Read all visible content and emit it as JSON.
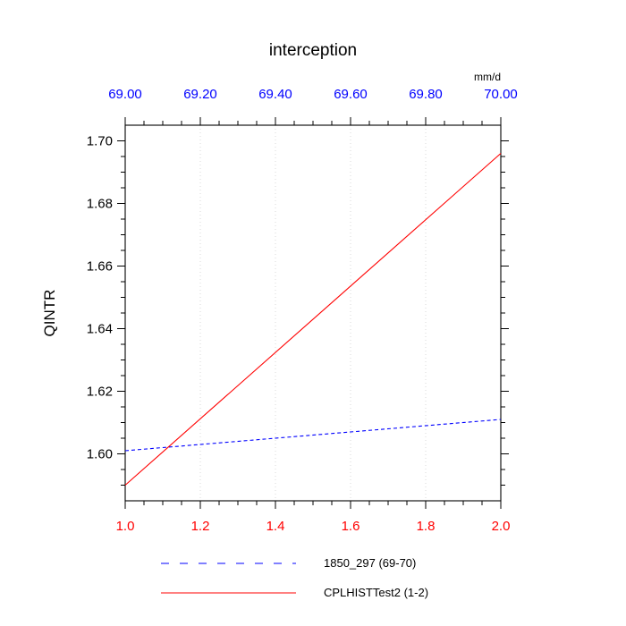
{
  "colors": {
    "background": "#ffffff",
    "frame": "#000000",
    "grid": "#d9d9d9",
    "axis_text": "#000000",
    "legend_text": "#000000"
  },
  "chart_data": {
    "type": "line",
    "title": "interception",
    "ylabel": "QINTR",
    "ylim": [
      1.585,
      1.705
    ],
    "grid": "vertical-dotted",
    "legend_position": "bottom",
    "left_axis": {
      "ticks": [
        1.6,
        1.62,
        1.64,
        1.66,
        1.68,
        1.7
      ],
      "tick_labels": [
        "1.60",
        "1.62",
        "1.64",
        "1.66",
        "1.68",
        "1.70"
      ],
      "minor_step": 0.005
    },
    "bottom_axis": {
      "lim": [
        1.0,
        2.0
      ],
      "ticks": [
        1.0,
        1.2,
        1.4,
        1.6,
        1.8,
        2.0
      ],
      "tick_labels": [
        "1.0",
        "1.2",
        "1.4",
        "1.6",
        "1.8",
        "2.0"
      ],
      "minor_step": 0.05,
      "color": "#ff0000"
    },
    "top_axis": {
      "lim": [
        69.0,
        70.0
      ],
      "ticks": [
        69.0,
        69.2,
        69.4,
        69.6,
        69.8,
        70.0
      ],
      "tick_labels": [
        "69.00",
        "69.20",
        "69.40",
        "69.60",
        "69.80",
        "70.00"
      ],
      "minor_step": 0.05,
      "unit": "mm/d",
      "color": "#0000ff"
    },
    "grid_x": [
      1.2,
      1.4,
      1.6,
      1.8
    ],
    "series": [
      {
        "name": "1850_297 (69-70)",
        "axis": "top",
        "color": "#0000ff",
        "style": "dashed",
        "x": [
          69.0,
          70.0
        ],
        "y": [
          1.601,
          1.611
        ]
      },
      {
        "name": "CPLHISTTest2 (1-2)",
        "axis": "bottom",
        "color": "#ff0000",
        "style": "solid",
        "x": [
          1.0,
          2.0
        ],
        "y": [
          1.59,
          1.696
        ]
      }
    ]
  }
}
